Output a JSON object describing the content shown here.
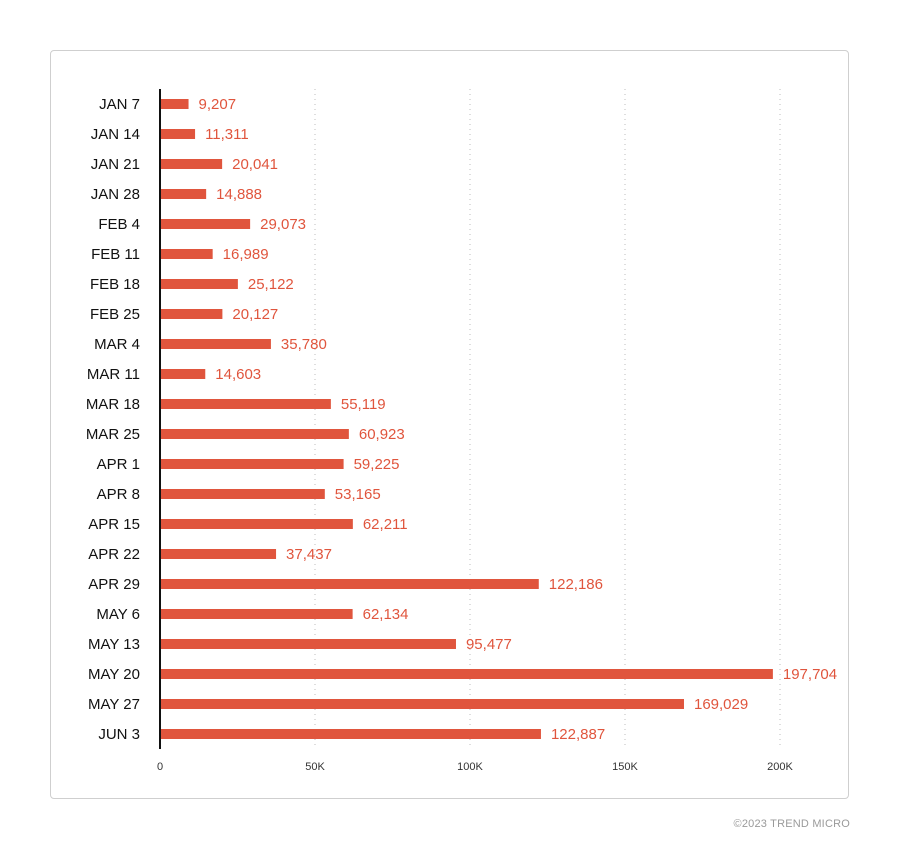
{
  "chart_data": {
    "type": "bar",
    "orientation": "horizontal",
    "categories": [
      "JAN 7",
      "JAN 14",
      "JAN 21",
      "JAN 28",
      "FEB 4",
      "FEB 11",
      "FEB 18",
      "FEB 25",
      "MAR 4",
      "MAR 11",
      "MAR 18",
      "MAR 25",
      "APR 1",
      "APR 8",
      "APR 15",
      "APR 22",
      "APR 29",
      "MAY 6",
      "MAY 13",
      "MAY 20",
      "MAY 27",
      "JUN 3"
    ],
    "values": [
      9207,
      11311,
      20041,
      14888,
      29073,
      16989,
      25122,
      20127,
      35780,
      14603,
      55119,
      60923,
      59225,
      53165,
      62211,
      37437,
      122186,
      62134,
      95477,
      197704,
      169029,
      122887
    ],
    "data_labels": [
      "9,207",
      "11,311",
      "20,041",
      "14,888",
      "29,073",
      "16,989",
      "25,122",
      "20,127",
      "35,780",
      "14,603",
      "55,119",
      "60,923",
      "59,225",
      "53,165",
      "62,211",
      "37,437",
      "122,186",
      "62,134",
      "95,477",
      "197,704",
      "169,029",
      "122,887"
    ],
    "x_ticks": [
      0,
      50000,
      100000,
      150000,
      200000
    ],
    "x_tick_labels": [
      "0",
      "50K",
      "100K",
      "150K",
      "200K"
    ],
    "xlim": [
      0,
      200000
    ],
    "grid": "vertical dotted",
    "legend": "none",
    "bar_color": "#e0553d",
    "label_color": "#e0553d",
    "title": "",
    "xlabel": "",
    "ylabel": ""
  },
  "footer": {
    "copyright": "©2023 TREND MICRO"
  }
}
